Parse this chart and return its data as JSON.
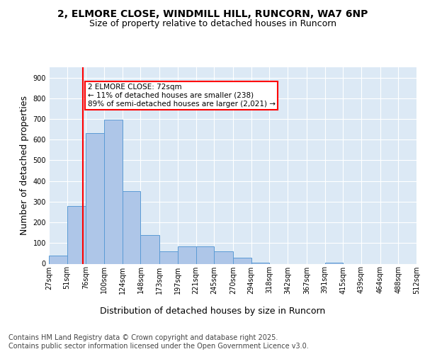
{
  "title_line1": "2, ELMORE CLOSE, WINDMILL HILL, RUNCORN, WA7 6NP",
  "title_line2": "Size of property relative to detached houses in Runcorn",
  "xlabel": "Distribution of detached houses by size in Runcorn",
  "ylabel": "Number of detached properties",
  "footer_line1": "Contains HM Land Registry data © Crown copyright and database right 2025.",
  "footer_line2": "Contains public sector information licensed under the Open Government Licence v3.0.",
  "bar_left_edges": [
    27,
    51,
    76,
    100,
    124,
    148,
    173,
    197,
    221,
    245,
    270,
    294,
    318,
    342,
    367,
    391,
    415,
    439,
    464,
    488
  ],
  "bar_widths": [
    24,
    25,
    24,
    24,
    24,
    25,
    24,
    24,
    24,
    25,
    24,
    24,
    24,
    25,
    24,
    24,
    24,
    25,
    24,
    24
  ],
  "bar_heights": [
    40,
    280,
    630,
    695,
    350,
    140,
    60,
    85,
    85,
    60,
    30,
    5,
    0,
    0,
    0,
    5,
    0,
    0,
    0,
    0
  ],
  "tick_labels": [
    "27sqm",
    "51sqm",
    "76sqm",
    "100sqm",
    "124sqm",
    "148sqm",
    "173sqm",
    "197sqm",
    "221sqm",
    "245sqm",
    "270sqm",
    "294sqm",
    "318sqm",
    "342sqm",
    "367sqm",
    "391sqm",
    "415sqm",
    "439sqm",
    "464sqm",
    "488sqm",
    "512sqm"
  ],
  "bar_color": "#aec6e8",
  "bar_edge_color": "#5b9bd5",
  "red_line_x": 72,
  "annotation_text": "2 ELMORE CLOSE: 72sqm\n← 11% of detached houses are smaller (238)\n89% of semi-detached houses are larger (2,021) →",
  "ylim": [
    0,
    950
  ],
  "yticks": [
    0,
    100,
    200,
    300,
    400,
    500,
    600,
    700,
    800,
    900
  ],
  "plot_bg_color": "#dce9f5",
  "figure_bg_color": "#ffffff",
  "title_fontsize": 10,
  "subtitle_fontsize": 9,
  "axis_label_fontsize": 9,
  "tick_fontsize": 7,
  "footer_fontsize": 7,
  "annot_fontsize": 7.5
}
